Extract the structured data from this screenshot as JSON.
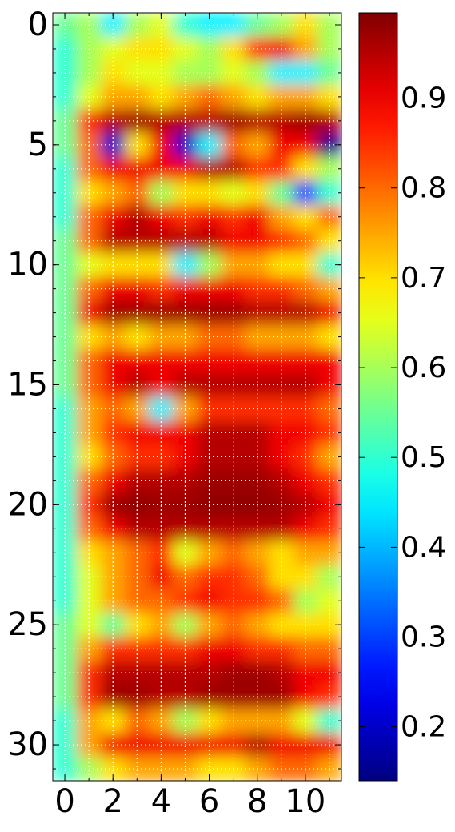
{
  "chart_data": {
    "type": "heatmap",
    "colormap": "jet",
    "clim": [
      0.14,
      0.995
    ],
    "xlim": [
      -0.5,
      11.5
    ],
    "ylim": [
      31.5,
      -0.5
    ],
    "xticks": [
      0,
      2,
      4,
      6,
      8,
      10
    ],
    "yticks": [
      0,
      5,
      10,
      15,
      20,
      25,
      30
    ],
    "xminor_ticks": [
      0,
      1,
      2,
      3,
      4,
      5,
      6,
      7,
      8,
      9,
      10,
      11
    ],
    "yminor_ticks": [
      0,
      1,
      2,
      3,
      4,
      5,
      6,
      7,
      8,
      9,
      10,
      11,
      12,
      13,
      14,
      15,
      16,
      17,
      18,
      19,
      20,
      21,
      22,
      23,
      24,
      25,
      26,
      27,
      28,
      29,
      30,
      31
    ],
    "grid": true,
    "grid_color": "#ffffff",
    "colorbar_ticks": [
      0.2,
      0.3,
      0.4,
      0.5,
      0.6,
      0.7,
      0.8,
      0.9
    ],
    "values": [
      [
        0.55,
        0.6,
        0.45,
        0.6,
        0.65,
        0.5,
        0.45,
        0.45,
        0.55,
        0.6,
        0.7,
        0.6
      ],
      [
        0.5,
        0.6,
        0.65,
        0.7,
        0.7,
        0.65,
        0.6,
        0.7,
        0.85,
        0.9,
        0.75,
        0.6
      ],
      [
        0.5,
        0.6,
        0.7,
        0.65,
        0.65,
        0.6,
        0.6,
        0.65,
        0.6,
        0.45,
        0.45,
        0.55
      ],
      [
        0.5,
        0.65,
        0.75,
        0.75,
        0.7,
        0.75,
        0.8,
        0.75,
        0.7,
        0.75,
        0.75,
        0.7
      ],
      [
        0.55,
        0.85,
        0.95,
        0.97,
        0.95,
        0.95,
        0.95,
        0.97,
        0.95,
        0.95,
        0.97,
        0.95
      ],
      [
        0.55,
        0.8,
        0.2,
        0.7,
        0.9,
        0.2,
        0.45,
        0.8,
        0.75,
        0.9,
        0.9,
        0.15
      ],
      [
        0.5,
        0.8,
        0.9,
        0.9,
        0.9,
        0.9,
        0.95,
        0.95,
        0.85,
        0.85,
        0.7,
        0.6
      ],
      [
        0.5,
        0.7,
        0.75,
        0.8,
        0.6,
        0.7,
        0.7,
        0.65,
        0.7,
        0.55,
        0.3,
        0.5
      ],
      [
        0.5,
        0.8,
        0.9,
        0.95,
        0.9,
        0.85,
        0.9,
        0.85,
        0.9,
        0.75,
        0.7,
        0.8
      ],
      [
        0.55,
        0.8,
        0.95,
        0.95,
        0.95,
        0.95,
        0.95,
        0.9,
        0.9,
        0.85,
        0.8,
        0.7
      ],
      [
        0.55,
        0.65,
        0.7,
        0.7,
        0.7,
        0.45,
        0.6,
        0.75,
        0.75,
        0.7,
        0.7,
        0.5
      ],
      [
        0.55,
        0.8,
        0.9,
        0.9,
        0.85,
        0.9,
        0.9,
        0.9,
        0.85,
        0.85,
        0.8,
        0.75
      ],
      [
        0.55,
        0.9,
        0.97,
        0.97,
        0.97,
        0.97,
        0.97,
        0.97,
        0.95,
        0.95,
        0.95,
        0.9
      ],
      [
        0.55,
        0.7,
        0.75,
        0.7,
        0.75,
        0.75,
        0.8,
        0.8,
        0.75,
        0.75,
        0.75,
        0.7
      ],
      [
        0.55,
        0.8,
        0.9,
        0.9,
        0.9,
        0.9,
        0.9,
        0.9,
        0.9,
        0.9,
        0.9,
        0.9
      ],
      [
        0.55,
        0.8,
        0.9,
        0.95,
        0.9,
        0.95,
        0.95,
        0.95,
        0.95,
        0.95,
        0.95,
        0.9
      ],
      [
        0.5,
        0.75,
        0.8,
        0.75,
        0.45,
        0.75,
        0.85,
        0.85,
        0.85,
        0.85,
        0.85,
        0.8
      ],
      [
        0.5,
        0.75,
        0.85,
        0.9,
        0.9,
        0.9,
        0.95,
        0.95,
        0.95,
        0.9,
        0.9,
        0.85
      ],
      [
        0.5,
        0.7,
        0.8,
        0.85,
        0.85,
        0.9,
        0.95,
        0.95,
        0.95,
        0.9,
        0.85,
        0.75
      ],
      [
        0.5,
        0.8,
        0.9,
        0.95,
        0.95,
        0.95,
        0.97,
        0.97,
        0.97,
        0.95,
        0.9,
        0.85
      ],
      [
        0.5,
        0.85,
        0.97,
        0.98,
        0.97,
        0.97,
        0.98,
        0.98,
        0.98,
        0.97,
        0.95,
        0.9
      ],
      [
        0.5,
        0.8,
        0.9,
        0.95,
        0.95,
        0.95,
        0.95,
        0.95,
        0.95,
        0.95,
        0.9,
        0.85
      ],
      [
        0.5,
        0.7,
        0.75,
        0.8,
        0.85,
        0.65,
        0.75,
        0.8,
        0.75,
        0.7,
        0.75,
        0.75
      ],
      [
        0.5,
        0.65,
        0.75,
        0.8,
        0.9,
        0.8,
        0.85,
        0.85,
        0.8,
        0.7,
        0.7,
        0.6
      ],
      [
        0.5,
        0.65,
        0.75,
        0.8,
        0.8,
        0.85,
        0.9,
        0.85,
        0.85,
        0.8,
        0.6,
        0.65
      ],
      [
        0.55,
        0.65,
        0.55,
        0.7,
        0.75,
        0.6,
        0.75,
        0.8,
        0.75,
        0.7,
        0.7,
        0.7
      ],
      [
        0.55,
        0.75,
        0.85,
        0.85,
        0.85,
        0.85,
        0.9,
        0.9,
        0.85,
        0.85,
        0.8,
        0.8
      ],
      [
        0.55,
        0.85,
        0.95,
        0.95,
        0.95,
        0.95,
        0.95,
        0.97,
        0.97,
        0.95,
        0.9,
        0.9
      ],
      [
        0.55,
        0.85,
        0.97,
        0.97,
        0.95,
        0.95,
        0.97,
        0.97,
        0.97,
        0.97,
        0.9,
        0.85
      ],
      [
        0.5,
        0.75,
        0.7,
        0.8,
        0.75,
        0.6,
        0.7,
        0.75,
        0.75,
        0.75,
        0.65,
        0.5
      ],
      [
        0.5,
        0.75,
        0.9,
        0.9,
        0.9,
        0.9,
        0.9,
        0.9,
        0.95,
        0.9,
        0.9,
        0.9
      ],
      [
        0.5,
        0.6,
        0.7,
        0.75,
        0.75,
        0.75,
        0.7,
        0.7,
        0.75,
        0.8,
        0.8,
        0.75
      ]
    ]
  }
}
